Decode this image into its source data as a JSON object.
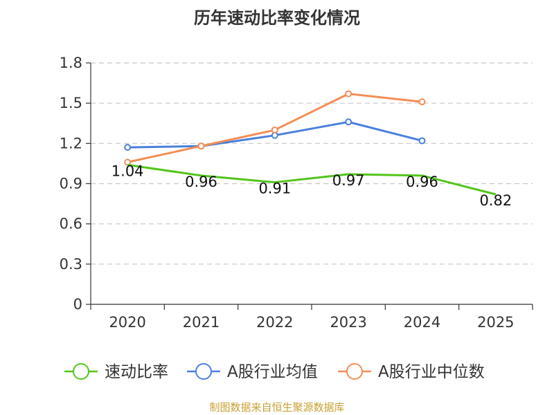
{
  "chart_data": {
    "type": "line",
    "title": "历年速动比率变化情况",
    "categories": [
      "2020",
      "2021",
      "2022",
      "2023",
      "2024",
      "2025"
    ],
    "ylim": [
      0,
      1.8
    ],
    "yticks": [
      "0",
      "0.3",
      "0.6",
      "0.9",
      "1.2",
      "1.5",
      "1.8"
    ],
    "grid": true,
    "legend_position": "bottom",
    "series": [
      {
        "name": "速动比率",
        "color": "#52c41a",
        "values": [
          1.04,
          0.96,
          0.91,
          0.97,
          0.96,
          0.82
        ],
        "labels": [
          "1.04",
          "0.96",
          "0.91",
          "0.97",
          "0.96",
          "0.82"
        ]
      },
      {
        "name": "A股行业均值",
        "color": "#4a7fdc",
        "values": [
          1.17,
          1.18,
          1.26,
          1.36,
          1.22,
          null
        ]
      },
      {
        "name": "A股行业中位数",
        "color": "#f28e55",
        "values": [
          1.06,
          1.18,
          1.3,
          1.57,
          1.51,
          null
        ]
      }
    ]
  },
  "footer": {
    "source": "制图数据来自恒生聚源数据库"
  }
}
